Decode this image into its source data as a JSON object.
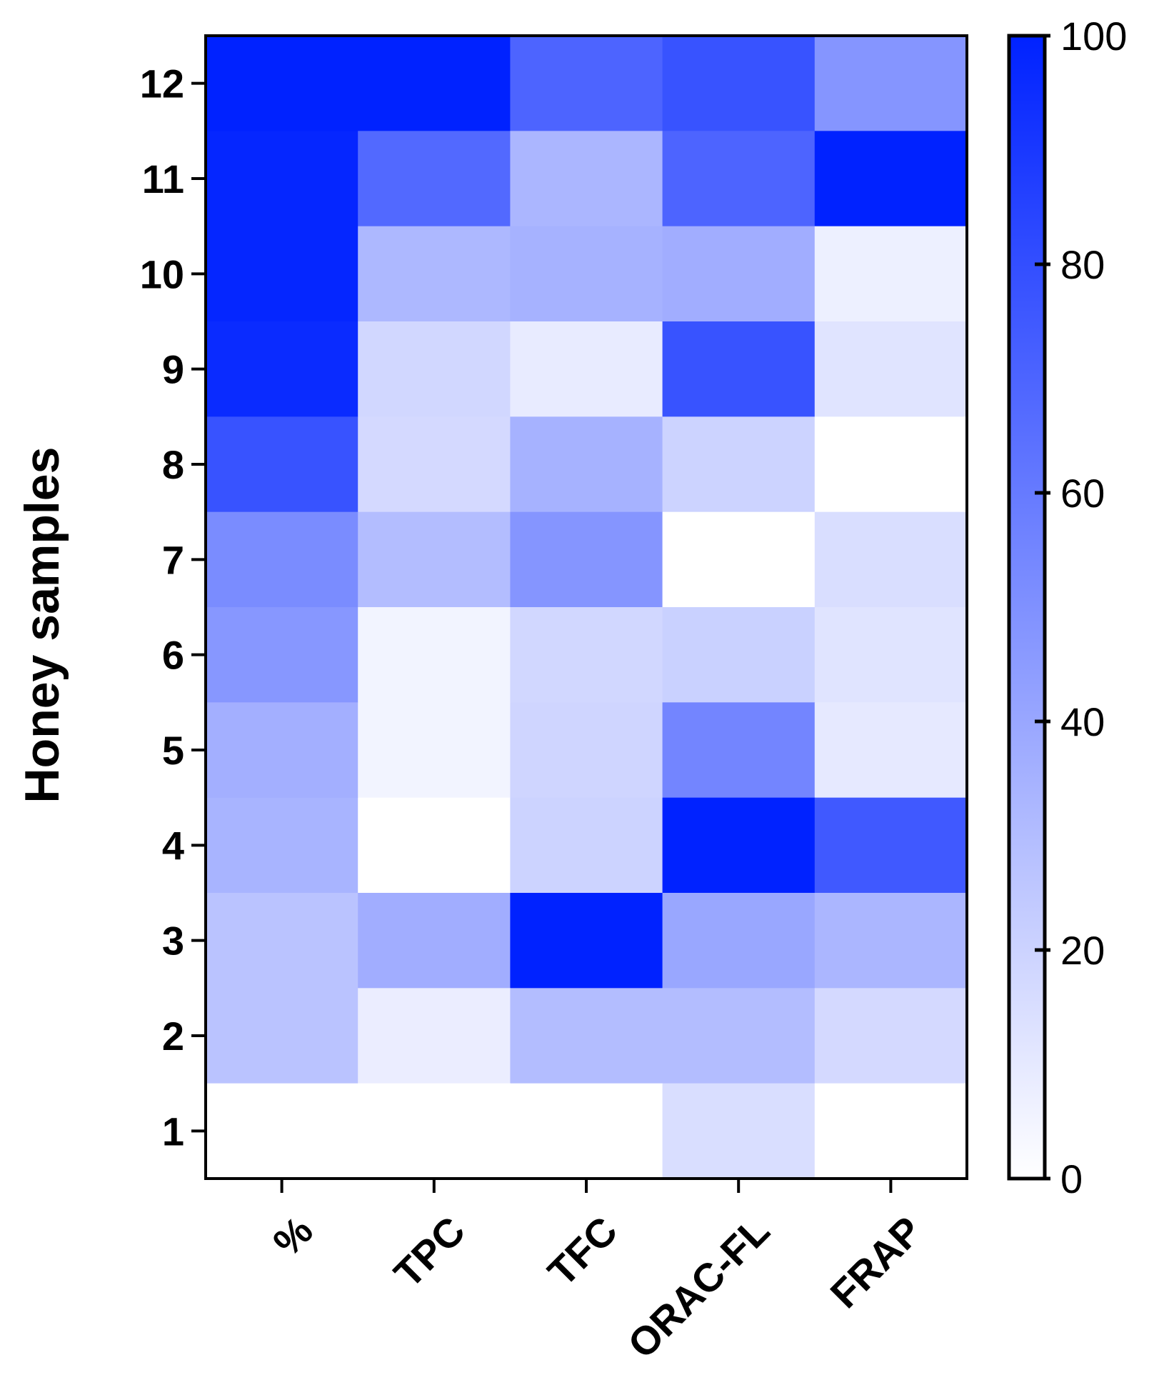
{
  "chart_data": {
    "type": "heatmap",
    "title": "",
    "xlabel": "",
    "ylabel": "Honey samples",
    "columns": [
      "%",
      "TPC",
      "TFC",
      "ORAC-FL",
      "FRAP"
    ],
    "rows": [
      "12",
      "11",
      "10",
      "9",
      "8",
      "7",
      "6",
      "5",
      "4",
      "3",
      "2",
      "1"
    ],
    "values": [
      [
        100,
        100,
        70,
        78,
        48
      ],
      [
        98,
        68,
        33,
        70,
        100
      ],
      [
        98,
        32,
        35,
        37,
        7
      ],
      [
        96,
        18,
        9,
        78,
        12
      ],
      [
        78,
        17,
        35,
        20,
        0
      ],
      [
        52,
        30,
        48,
        0,
        15
      ],
      [
        47,
        5,
        18,
        21,
        12
      ],
      [
        36,
        5,
        19,
        55,
        10
      ],
      [
        34,
        0,
        20,
        100,
        75
      ],
      [
        27,
        37,
        100,
        40,
        33
      ],
      [
        27,
        8,
        30,
        30,
        17
      ],
      [
        0,
        0,
        0,
        15,
        0
      ]
    ],
    "colorbar": {
      "min": 0,
      "max": 100,
      "ticks": [
        0,
        20,
        40,
        60,
        80,
        100
      ],
      "tick_labels": [
        "0",
        "20",
        "40",
        "60",
        "80",
        "100"
      ],
      "color_low": "#ffffff",
      "color_high": "#0022ff"
    }
  }
}
